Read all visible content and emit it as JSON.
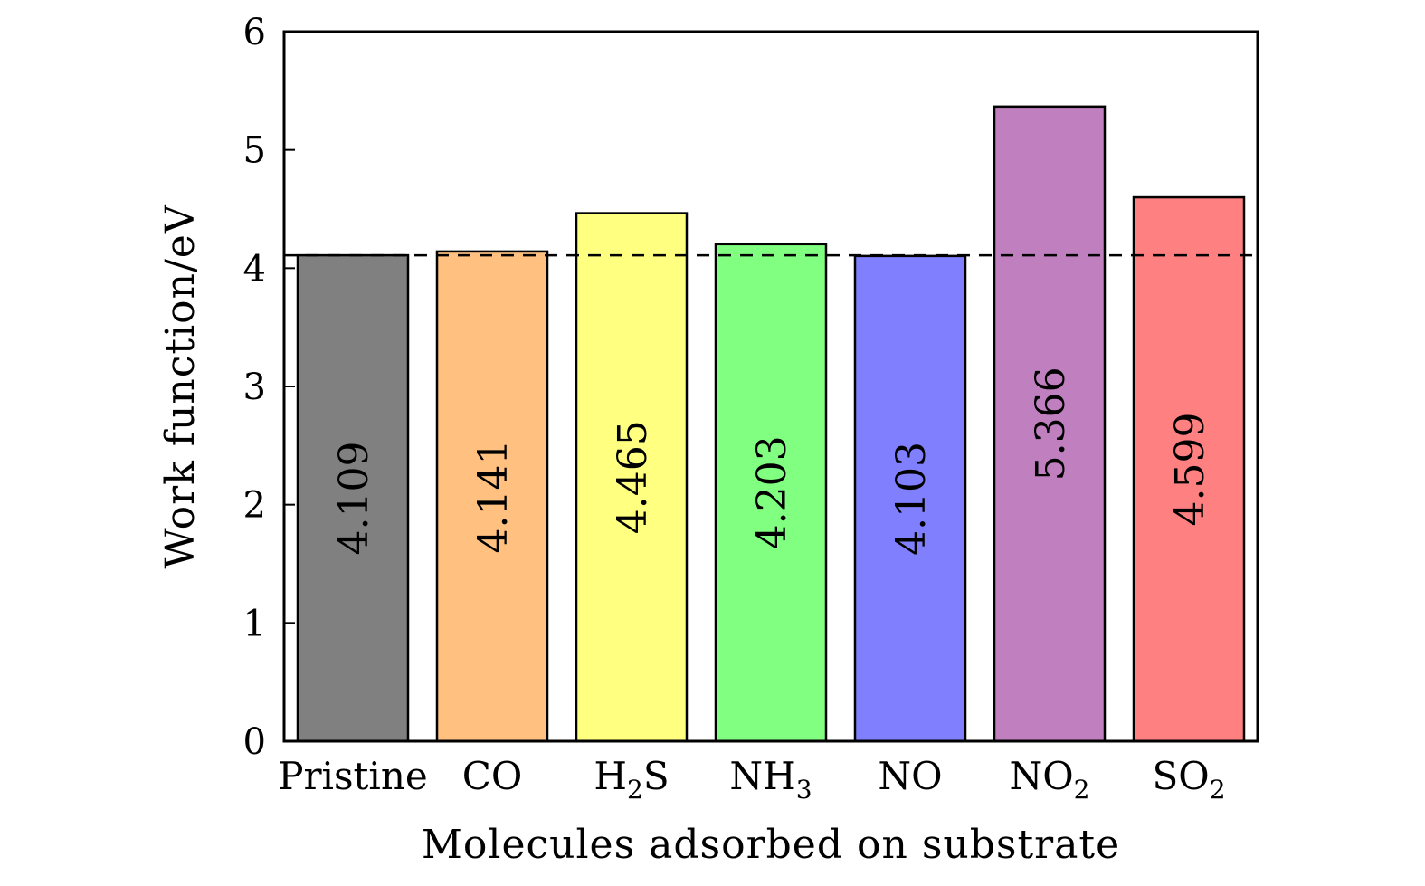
{
  "chart_data": {
    "type": "bar",
    "title": "",
    "xlabel": "Molecules adsorbed on substrate",
    "ylabel": "Work function/eV",
    "ylim": [
      0,
      6
    ],
    "yticks": [
      "0",
      "1",
      "2",
      "3",
      "4",
      "5",
      "6"
    ],
    "categories": [
      {
        "main": "Pristine",
        "sub": "",
        "tail": ""
      },
      {
        "main": "CO",
        "sub": "",
        "tail": ""
      },
      {
        "main": "H",
        "sub": "2",
        "tail": "S"
      },
      {
        "main": "NH",
        "sub": "3",
        "tail": ""
      },
      {
        "main": "NO",
        "sub": "",
        "tail": ""
      },
      {
        "main": "NO",
        "sub": "2",
        "tail": ""
      },
      {
        "main": "SO",
        "sub": "2",
        "tail": ""
      }
    ],
    "values": [
      4.109,
      4.141,
      4.465,
      4.203,
      4.103,
      5.366,
      4.599
    ],
    "value_labels": [
      "4.109",
      "4.141",
      "4.465",
      "4.203",
      "4.103",
      "5.366",
      "4.599"
    ],
    "colors": [
      "#808080",
      "#ffc080",
      "#ffff80",
      "#80ff80",
      "#8080ff",
      "#c080c0",
      "#ff8080"
    ],
    "reference_line": {
      "value": 4.109,
      "style": "dashed"
    },
    "grid": false,
    "legend": "none"
  }
}
